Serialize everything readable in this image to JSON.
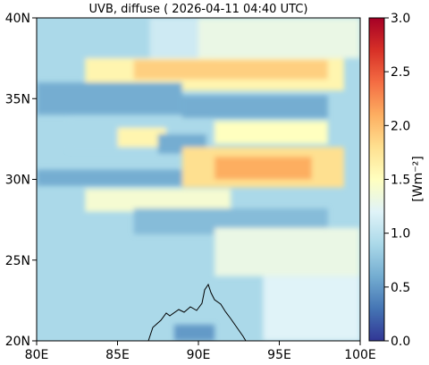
{
  "chart_data": {
    "type": "heatmap",
    "title": "UVB, diffuse ( 2026-04-11 04:40 UTC)",
    "x_axis": {
      "range": [
        80,
        100
      ],
      "ticks": [
        80,
        85,
        90,
        95,
        100
      ],
      "tick_labels": [
        "80E",
        "85E",
        "90E",
        "95E",
        "100E"
      ]
    },
    "y_axis": {
      "range": [
        20,
        40
      ],
      "ticks": [
        20,
        25,
        30,
        35,
        40
      ],
      "tick_labels": [
        "20N",
        "25N",
        "30N",
        "35N",
        "40N"
      ]
    },
    "colorbar": {
      "label": "[Wm⁻²]",
      "range": [
        0.0,
        3.0
      ],
      "ticks": [
        0.0,
        0.5,
        1.0,
        1.5,
        2.0,
        2.5,
        3.0
      ],
      "tick_labels": [
        "0.0",
        "0.5",
        "1.0",
        "1.5",
        "2.0",
        "2.5",
        "3.0"
      ],
      "colormap": "RdYlBu_r",
      "colors": [
        "#313695",
        "#4575b4",
        "#74add1",
        "#abd9e9",
        "#e0f3f8",
        "#ffffbf",
        "#fee090",
        "#fdae61",
        "#f46d43",
        "#d73027",
        "#a50026"
      ]
    },
    "background_value": 0.9,
    "regions": [
      {
        "lon": [
          80.0,
          87.0
        ],
        "lat": [
          37.5,
          40.0
        ],
        "value": 0.9
      },
      {
        "lon": [
          87.0,
          91.0
        ],
        "lat": [
          37.5,
          40.0
        ],
        "value": 1.1
      },
      {
        "lon": [
          90.0,
          100.0
        ],
        "lat": [
          37.5,
          40.0
        ],
        "value": 1.3
      },
      {
        "lon": [
          83.0,
          99.0
        ],
        "lat": [
          35.5,
          37.5
        ],
        "value": 1.6
      },
      {
        "lon": [
          86.0,
          98.0
        ],
        "lat": [
          36.2,
          37.4
        ],
        "value": 1.9
      },
      {
        "lon": [
          80.0,
          89.0
        ],
        "lat": [
          34.0,
          36.0
        ],
        "value": 0.6
      },
      {
        "lon": [
          89.0,
          98.0
        ],
        "lat": [
          33.8,
          35.2
        ],
        "value": 0.6
      },
      {
        "lon": [
          82.0,
          91.0
        ],
        "lat": [
          31.8,
          33.8
        ],
        "value": 0.9
      },
      {
        "lon": [
          85.0,
          88.0
        ],
        "lat": [
          32.0,
          33.2
        ],
        "value": 1.6
      },
      {
        "lon": [
          87.5,
          90.5
        ],
        "lat": [
          31.6,
          32.8
        ],
        "value": 0.6
      },
      {
        "lon": [
          91.0,
          98.0
        ],
        "lat": [
          32.2,
          33.6
        ],
        "value": 1.5
      },
      {
        "lon": [
          89.0,
          99.0
        ],
        "lat": [
          29.5,
          32.0
        ],
        "value": 1.8
      },
      {
        "lon": [
          91.0,
          97.0
        ],
        "lat": [
          30.0,
          31.4
        ],
        "value": 2.1
      },
      {
        "lon": [
          80.0,
          89.0
        ],
        "lat": [
          29.6,
          30.6
        ],
        "value": 0.6
      },
      {
        "lon": [
          83.0,
          92.0
        ],
        "lat": [
          28.0,
          29.4
        ],
        "value": 1.4
      },
      {
        "lon": [
          86.0,
          98.0
        ],
        "lat": [
          26.6,
          28.2
        ],
        "value": 0.7
      },
      {
        "lon": [
          91.0,
          100.0
        ],
        "lat": [
          24.0,
          27.0
        ],
        "value": 1.3
      },
      {
        "lon": [
          94.0,
          100.0
        ],
        "lat": [
          20.0,
          24.0
        ],
        "value": 1.2
      },
      {
        "lon": [
          88.5,
          91.0
        ],
        "lat": [
          20.0,
          21.0
        ],
        "value": 0.5
      }
    ]
  }
}
